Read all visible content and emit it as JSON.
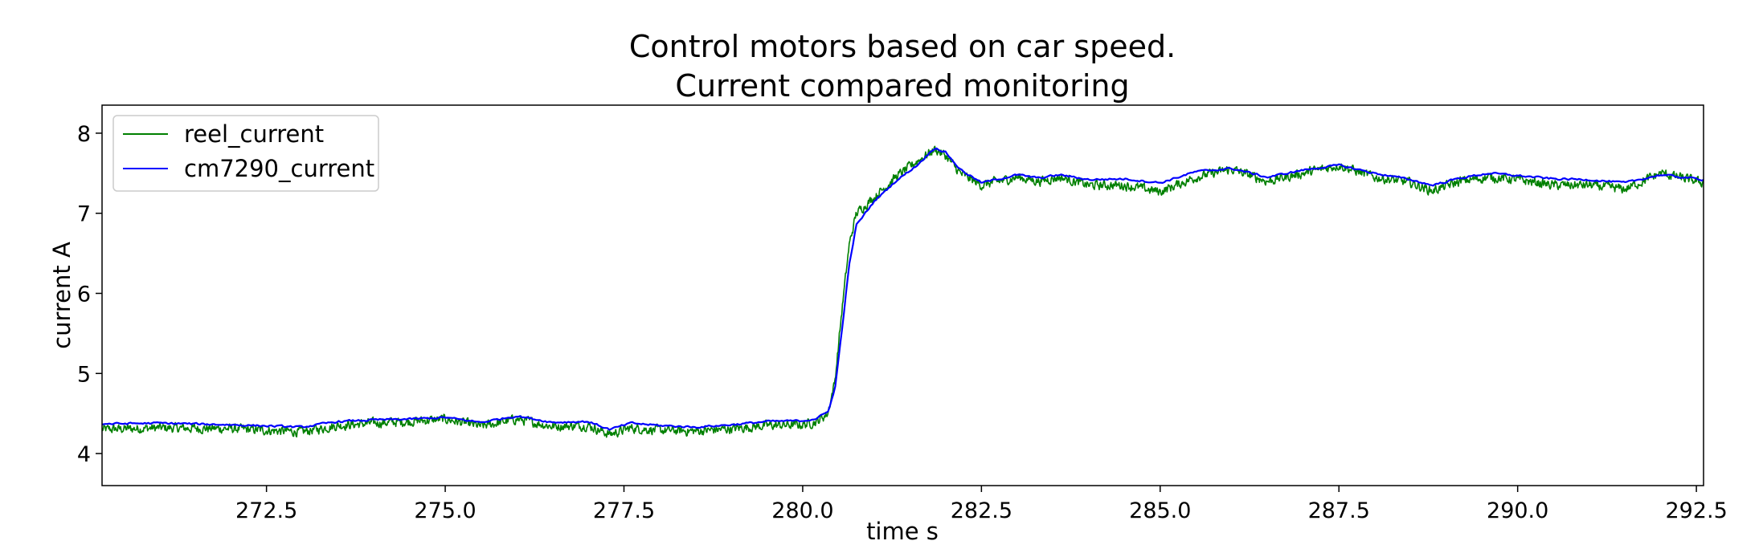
{
  "chart_data": {
    "type": "line",
    "title": [
      "Control motors based on car speed.",
      "Current compared monitoring"
    ],
    "xlabel": "time s",
    "ylabel": "current A",
    "xlim": [
      270.2,
      292.6
    ],
    "ylim": [
      3.6,
      8.35
    ],
    "xticks": [
      272.5,
      275.0,
      277.5,
      280.0,
      282.5,
      285.0,
      287.5,
      290.0,
      292.5
    ],
    "xtick_labels": [
      "272.5",
      "275.0",
      "277.5",
      "280.0",
      "282.5",
      "285.0",
      "287.5",
      "290.0",
      "292.5"
    ],
    "yticks": [
      4,
      5,
      6,
      7,
      8
    ],
    "ytick_labels": [
      "4",
      "5",
      "6",
      "7",
      "8"
    ],
    "grid": false,
    "legend_position": "top-left",
    "series": [
      {
        "name": "reel_current",
        "color": "#008000",
        "noise": 0.09,
        "x": [
          270.2,
          271.0,
          272.0,
          273.0,
          273.5,
          274.0,
          274.5,
          275.0,
          275.5,
          276.0,
          276.5,
          277.0,
          277.3,
          277.6,
          278.0,
          278.5,
          279.0,
          279.5,
          280.0,
          280.2,
          280.35,
          280.45,
          280.55,
          280.65,
          280.75,
          281.0,
          281.3,
          281.6,
          281.85,
          282.0,
          282.2,
          282.5,
          283.0,
          283.3,
          283.6,
          284.0,
          284.5,
          285.0,
          285.5,
          286.0,
          286.5,
          287.0,
          287.5,
          288.0,
          288.5,
          288.8,
          289.2,
          289.6,
          290.0,
          290.5,
          291.0,
          291.5,
          292.0,
          292.6
        ],
        "y": [
          4.3,
          4.32,
          4.31,
          4.27,
          4.35,
          4.38,
          4.4,
          4.43,
          4.34,
          4.43,
          4.34,
          4.35,
          4.24,
          4.32,
          4.29,
          4.28,
          4.31,
          4.35,
          4.36,
          4.4,
          4.5,
          4.9,
          5.8,
          6.6,
          7.0,
          7.2,
          7.45,
          7.65,
          7.8,
          7.72,
          7.5,
          7.35,
          7.45,
          7.4,
          7.45,
          7.35,
          7.35,
          7.27,
          7.45,
          7.55,
          7.4,
          7.5,
          7.6,
          7.45,
          7.38,
          7.28,
          7.4,
          7.45,
          7.42,
          7.35,
          7.35,
          7.3,
          7.5,
          7.38
        ]
      },
      {
        "name": "cm7290_current",
        "color": "#0000ff",
        "noise": 0.02,
        "x": [
          270.2,
          271.0,
          272.0,
          273.0,
          273.5,
          274.0,
          274.5,
          275.0,
          275.5,
          276.0,
          276.5,
          277.0,
          277.3,
          277.6,
          278.0,
          278.5,
          279.0,
          279.5,
          280.0,
          280.2,
          280.35,
          280.45,
          280.55,
          280.65,
          280.75,
          281.0,
          281.3,
          281.6,
          281.85,
          282.0,
          282.2,
          282.5,
          283.0,
          283.3,
          283.6,
          284.0,
          284.5,
          285.0,
          285.5,
          286.0,
          286.5,
          287.0,
          287.5,
          288.0,
          288.5,
          288.8,
          289.2,
          289.6,
          290.0,
          290.5,
          291.0,
          291.5,
          292.0,
          292.6
        ],
        "y": [
          4.37,
          4.38,
          4.36,
          4.33,
          4.4,
          4.42,
          4.43,
          4.45,
          4.39,
          4.47,
          4.39,
          4.4,
          4.3,
          4.38,
          4.35,
          4.33,
          4.36,
          4.4,
          4.41,
          4.44,
          4.52,
          4.8,
          5.55,
          6.35,
          6.85,
          7.15,
          7.4,
          7.6,
          7.82,
          7.76,
          7.55,
          7.38,
          7.48,
          7.44,
          7.48,
          7.42,
          7.43,
          7.38,
          7.52,
          7.56,
          7.45,
          7.54,
          7.6,
          7.5,
          7.42,
          7.35,
          7.44,
          7.5,
          7.47,
          7.43,
          7.42,
          7.38,
          7.48,
          7.42
        ]
      }
    ]
  }
}
